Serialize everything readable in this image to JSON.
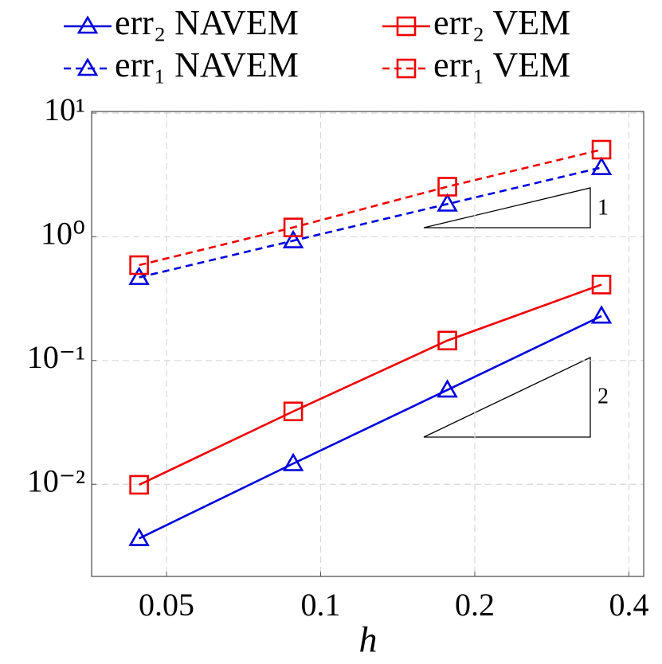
{
  "chart_data": {
    "type": "line",
    "xlog": true,
    "ylog": true,
    "grid": true,
    "xlabel": "h",
    "x": [
      0.0442,
      0.0884,
      0.1768,
      0.3536
    ],
    "xlim": [
      0.0357,
      0.4275
    ],
    "ylim": [
      0.0018,
      10.3
    ],
    "xticks": [
      0.05,
      0.1,
      0.2,
      0.4
    ],
    "yticks": [
      {
        "value": 0.01,
        "label": "10⁻²"
      },
      {
        "value": 0.1,
        "label": "10⁻¹"
      },
      {
        "value": 1,
        "label": "10⁰"
      },
      {
        "value": 10,
        "label": "10¹"
      }
    ],
    "series": [
      {
        "name": "err₂ NAVEM",
        "color": "#0000dd",
        "dashed": false,
        "marker": "triangle",
        "values": [
          0.00365,
          0.0147,
          0.0578,
          0.229
        ]
      },
      {
        "name": "err₁ NAVEM",
        "color": "#0000dd",
        "dashed": true,
        "marker": "triangle",
        "values": [
          0.47,
          0.93,
          1.84,
          3.63
        ]
      },
      {
        "name": "err₂ VEM",
        "color": "#ee0000",
        "dashed": false,
        "marker": "square",
        "values": [
          0.0099,
          0.0388,
          0.145,
          0.411
        ]
      },
      {
        "name": "err₁ VEM",
        "color": "#ee0000",
        "dashed": true,
        "marker": "square",
        "values": [
          0.59,
          1.19,
          2.54,
          5.06
        ]
      }
    ],
    "annotations": [
      "1",
      "2"
    ]
  }
}
